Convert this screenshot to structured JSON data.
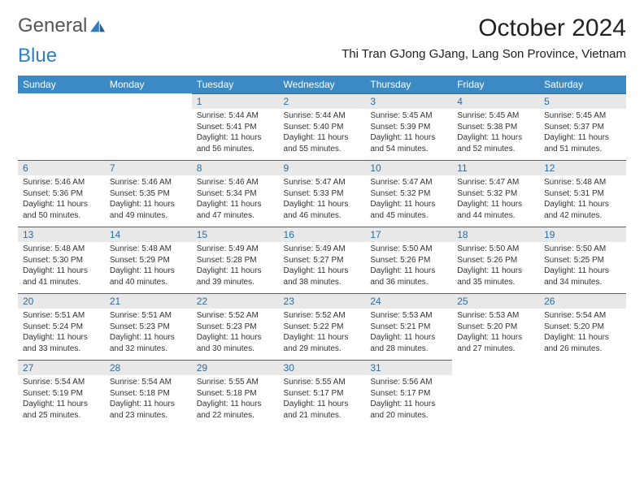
{
  "brand": {
    "part1": "General",
    "part2": "Blue"
  },
  "title": "October 2024",
  "subtitle": "Thi Tran GJong GJang, Lang Son Province, Vietnam",
  "colors": {
    "header_bg": "#3b8ac4",
    "header_text": "#ffffff",
    "daynum_bg": "#e8e8e8",
    "daynum_text": "#2c6da0",
    "daynum_border": "#2c6da0",
    "body_text": "#333333",
    "page_bg": "#ffffff"
  },
  "typography": {
    "title_fontsize": 30,
    "subtitle_fontsize": 15,
    "weekday_fontsize": 12,
    "daynum_fontsize": 12,
    "cell_fontsize": 10
  },
  "weekdays": [
    "Sunday",
    "Monday",
    "Tuesday",
    "Wednesday",
    "Thursday",
    "Friday",
    "Saturday"
  ],
  "weeks": [
    [
      null,
      null,
      {
        "n": "1",
        "sr": "Sunrise: 5:44 AM",
        "ss": "Sunset: 5:41 PM",
        "d1": "Daylight: 11 hours",
        "d2": "and 56 minutes."
      },
      {
        "n": "2",
        "sr": "Sunrise: 5:44 AM",
        "ss": "Sunset: 5:40 PM",
        "d1": "Daylight: 11 hours",
        "d2": "and 55 minutes."
      },
      {
        "n": "3",
        "sr": "Sunrise: 5:45 AM",
        "ss": "Sunset: 5:39 PM",
        "d1": "Daylight: 11 hours",
        "d2": "and 54 minutes."
      },
      {
        "n": "4",
        "sr": "Sunrise: 5:45 AM",
        "ss": "Sunset: 5:38 PM",
        "d1": "Daylight: 11 hours",
        "d2": "and 52 minutes."
      },
      {
        "n": "5",
        "sr": "Sunrise: 5:45 AM",
        "ss": "Sunset: 5:37 PM",
        "d1": "Daylight: 11 hours",
        "d2": "and 51 minutes."
      }
    ],
    [
      {
        "n": "6",
        "sr": "Sunrise: 5:46 AM",
        "ss": "Sunset: 5:36 PM",
        "d1": "Daylight: 11 hours",
        "d2": "and 50 minutes."
      },
      {
        "n": "7",
        "sr": "Sunrise: 5:46 AM",
        "ss": "Sunset: 5:35 PM",
        "d1": "Daylight: 11 hours",
        "d2": "and 49 minutes."
      },
      {
        "n": "8",
        "sr": "Sunrise: 5:46 AM",
        "ss": "Sunset: 5:34 PM",
        "d1": "Daylight: 11 hours",
        "d2": "and 47 minutes."
      },
      {
        "n": "9",
        "sr": "Sunrise: 5:47 AM",
        "ss": "Sunset: 5:33 PM",
        "d1": "Daylight: 11 hours",
        "d2": "and 46 minutes."
      },
      {
        "n": "10",
        "sr": "Sunrise: 5:47 AM",
        "ss": "Sunset: 5:32 PM",
        "d1": "Daylight: 11 hours",
        "d2": "and 45 minutes."
      },
      {
        "n": "11",
        "sr": "Sunrise: 5:47 AM",
        "ss": "Sunset: 5:32 PM",
        "d1": "Daylight: 11 hours",
        "d2": "and 44 minutes."
      },
      {
        "n": "12",
        "sr": "Sunrise: 5:48 AM",
        "ss": "Sunset: 5:31 PM",
        "d1": "Daylight: 11 hours",
        "d2": "and 42 minutes."
      }
    ],
    [
      {
        "n": "13",
        "sr": "Sunrise: 5:48 AM",
        "ss": "Sunset: 5:30 PM",
        "d1": "Daylight: 11 hours",
        "d2": "and 41 minutes."
      },
      {
        "n": "14",
        "sr": "Sunrise: 5:48 AM",
        "ss": "Sunset: 5:29 PM",
        "d1": "Daylight: 11 hours",
        "d2": "and 40 minutes."
      },
      {
        "n": "15",
        "sr": "Sunrise: 5:49 AM",
        "ss": "Sunset: 5:28 PM",
        "d1": "Daylight: 11 hours",
        "d2": "and 39 minutes."
      },
      {
        "n": "16",
        "sr": "Sunrise: 5:49 AM",
        "ss": "Sunset: 5:27 PM",
        "d1": "Daylight: 11 hours",
        "d2": "and 38 minutes."
      },
      {
        "n": "17",
        "sr": "Sunrise: 5:50 AM",
        "ss": "Sunset: 5:26 PM",
        "d1": "Daylight: 11 hours",
        "d2": "and 36 minutes."
      },
      {
        "n": "18",
        "sr": "Sunrise: 5:50 AM",
        "ss": "Sunset: 5:26 PM",
        "d1": "Daylight: 11 hours",
        "d2": "and 35 minutes."
      },
      {
        "n": "19",
        "sr": "Sunrise: 5:50 AM",
        "ss": "Sunset: 5:25 PM",
        "d1": "Daylight: 11 hours",
        "d2": "and 34 minutes."
      }
    ],
    [
      {
        "n": "20",
        "sr": "Sunrise: 5:51 AM",
        "ss": "Sunset: 5:24 PM",
        "d1": "Daylight: 11 hours",
        "d2": "and 33 minutes."
      },
      {
        "n": "21",
        "sr": "Sunrise: 5:51 AM",
        "ss": "Sunset: 5:23 PM",
        "d1": "Daylight: 11 hours",
        "d2": "and 32 minutes."
      },
      {
        "n": "22",
        "sr": "Sunrise: 5:52 AM",
        "ss": "Sunset: 5:23 PM",
        "d1": "Daylight: 11 hours",
        "d2": "and 30 minutes."
      },
      {
        "n": "23",
        "sr": "Sunrise: 5:52 AM",
        "ss": "Sunset: 5:22 PM",
        "d1": "Daylight: 11 hours",
        "d2": "and 29 minutes."
      },
      {
        "n": "24",
        "sr": "Sunrise: 5:53 AM",
        "ss": "Sunset: 5:21 PM",
        "d1": "Daylight: 11 hours",
        "d2": "and 28 minutes."
      },
      {
        "n": "25",
        "sr": "Sunrise: 5:53 AM",
        "ss": "Sunset: 5:20 PM",
        "d1": "Daylight: 11 hours",
        "d2": "and 27 minutes."
      },
      {
        "n": "26",
        "sr": "Sunrise: 5:54 AM",
        "ss": "Sunset: 5:20 PM",
        "d1": "Daylight: 11 hours",
        "d2": "and 26 minutes."
      }
    ],
    [
      {
        "n": "27",
        "sr": "Sunrise: 5:54 AM",
        "ss": "Sunset: 5:19 PM",
        "d1": "Daylight: 11 hours",
        "d2": "and 25 minutes."
      },
      {
        "n": "28",
        "sr": "Sunrise: 5:54 AM",
        "ss": "Sunset: 5:18 PM",
        "d1": "Daylight: 11 hours",
        "d2": "and 23 minutes."
      },
      {
        "n": "29",
        "sr": "Sunrise: 5:55 AM",
        "ss": "Sunset: 5:18 PM",
        "d1": "Daylight: 11 hours",
        "d2": "and 22 minutes."
      },
      {
        "n": "30",
        "sr": "Sunrise: 5:55 AM",
        "ss": "Sunset: 5:17 PM",
        "d1": "Daylight: 11 hours",
        "d2": "and 21 minutes."
      },
      {
        "n": "31",
        "sr": "Sunrise: 5:56 AM",
        "ss": "Sunset: 5:17 PM",
        "d1": "Daylight: 11 hours",
        "d2": "and 20 minutes."
      },
      null,
      null
    ]
  ]
}
